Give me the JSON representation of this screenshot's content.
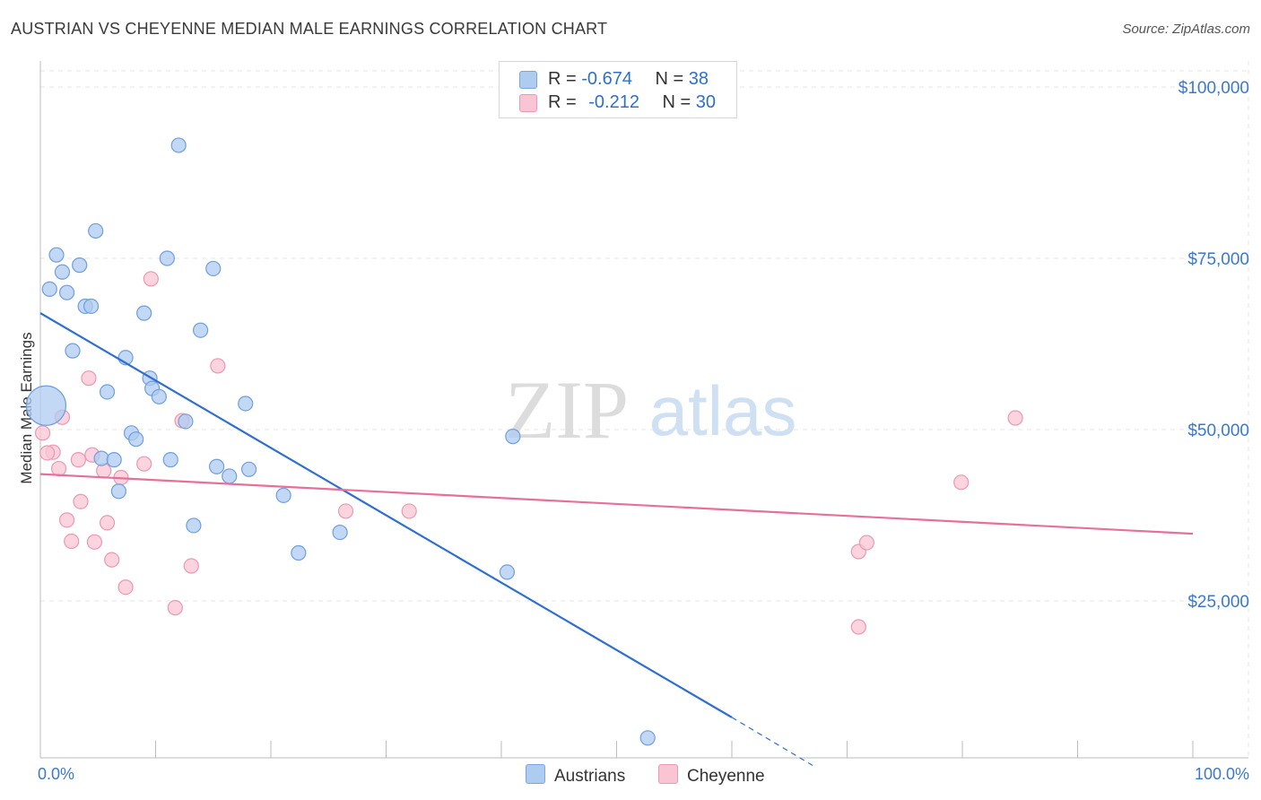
{
  "title": "AUSTRIAN VS CHEYENNE MEDIAN MALE EARNINGS CORRELATION CHART",
  "source": "Source: ZipAtlas.com",
  "watermark": {
    "zip": "ZIP",
    "atlas": "atlas"
  },
  "legend_top": [
    {
      "r_label": "R = ",
      "r_value": "-0.674",
      "n_label": "N = ",
      "n_value": "38",
      "color": "#aecbf0",
      "border": "#7aa6df"
    },
    {
      "r_label": "R = ",
      "r_value": "-0.212",
      "n_label": "N = ",
      "n_value": "30",
      "color": "#f9c5d4",
      "border": "#eb98b2"
    }
  ],
  "legend_bottom": [
    {
      "label": "Austrians",
      "color": "#aecbf0",
      "border": "#7aa6df"
    },
    {
      "label": "Cheyenne",
      "color": "#f9c5d4",
      "border": "#eb98b2"
    }
  ],
  "chart_data": {
    "type": "scatter",
    "title": "AUSTRIAN VS CHEYENNE MEDIAN MALE EARNINGS CORRELATION CHART",
    "xlabel": "",
    "ylabel": "Median Male Earnings",
    "xlim": [
      0,
      100
    ],
    "ylim": [
      0,
      102000
    ],
    "x_tick_labels": [
      "0.0%",
      "100.0%"
    ],
    "y_ticks": [
      25000,
      50000,
      75000,
      100000
    ],
    "y_tick_labels": [
      "$25,000",
      "$50,000",
      "$75,000",
      "$100,000"
    ],
    "grid": true,
    "series": [
      {
        "name": "Austrians",
        "color": "#aecbf0",
        "stroke": "#6f9fdc",
        "line_color": "#2f6fd1",
        "trend": {
          "x0": 0,
          "y0": 67000,
          "x1": 60,
          "y1": 8000,
          "dash_x1": 67,
          "dash_y1": 1000
        },
        "points": [
          {
            "x": 0.5,
            "y": 53500,
            "big": true
          },
          {
            "x": 12.0,
            "y": 91500
          },
          {
            "x": 4.8,
            "y": 79000
          },
          {
            "x": 1.4,
            "y": 75500
          },
          {
            "x": 3.4,
            "y": 74000
          },
          {
            "x": 11.0,
            "y": 75000
          },
          {
            "x": 15.0,
            "y": 73500
          },
          {
            "x": 1.9,
            "y": 73000
          },
          {
            "x": 0.8,
            "y": 70500
          },
          {
            "x": 2.3,
            "y": 70000
          },
          {
            "x": 3.9,
            "y": 68000
          },
          {
            "x": 4.4,
            "y": 68000
          },
          {
            "x": 9.0,
            "y": 67000
          },
          {
            "x": 13.9,
            "y": 64500
          },
          {
            "x": 2.8,
            "y": 61500
          },
          {
            "x": 7.4,
            "y": 60500
          },
          {
            "x": 9.5,
            "y": 57500
          },
          {
            "x": 9.7,
            "y": 56000
          },
          {
            "x": 10.3,
            "y": 54800
          },
          {
            "x": 5.8,
            "y": 55500
          },
          {
            "x": 17.8,
            "y": 53800
          },
          {
            "x": 12.6,
            "y": 51200
          },
          {
            "x": 7.9,
            "y": 49500
          },
          {
            "x": 8.3,
            "y": 48600
          },
          {
            "x": 41.0,
            "y": 49000
          },
          {
            "x": 5.3,
            "y": 45800
          },
          {
            "x": 6.4,
            "y": 45600
          },
          {
            "x": 11.3,
            "y": 45600
          },
          {
            "x": 15.3,
            "y": 44600
          },
          {
            "x": 18.1,
            "y": 44200
          },
          {
            "x": 16.4,
            "y": 43200
          },
          {
            "x": 6.8,
            "y": 41000
          },
          {
            "x": 21.1,
            "y": 40400
          },
          {
            "x": 13.3,
            "y": 36000
          },
          {
            "x": 26.0,
            "y": 35000
          },
          {
            "x": 22.4,
            "y": 32000
          },
          {
            "x": 40.5,
            "y": 29200
          },
          {
            "x": 52.7,
            "y": 5000
          }
        ]
      },
      {
        "name": "Cheyenne",
        "color": "#f9c5d4",
        "stroke": "#eb98b2",
        "line_color": "#e6709a",
        "trend": {
          "x0": 0,
          "y0": 43500,
          "x1": 100,
          "y1": 34800
        },
        "points": [
          {
            "x": 9.6,
            "y": 72000
          },
          {
            "x": 15.4,
            "y": 59300
          },
          {
            "x": 4.2,
            "y": 57500
          },
          {
            "x": 1.9,
            "y": 51800
          },
          {
            "x": 12.3,
            "y": 51300
          },
          {
            "x": 0.2,
            "y": 49500
          },
          {
            "x": 1.1,
            "y": 46700
          },
          {
            "x": 0.6,
            "y": 46600
          },
          {
            "x": 4.5,
            "y": 46300
          },
          {
            "x": 3.3,
            "y": 45600
          },
          {
            "x": 9.0,
            "y": 45000
          },
          {
            "x": 1.6,
            "y": 44300
          },
          {
            "x": 5.5,
            "y": 44000
          },
          {
            "x": 7.0,
            "y": 43000
          },
          {
            "x": 3.5,
            "y": 39500
          },
          {
            "x": 2.3,
            "y": 36800
          },
          {
            "x": 5.8,
            "y": 36400
          },
          {
            "x": 26.5,
            "y": 38100
          },
          {
            "x": 32.0,
            "y": 38100
          },
          {
            "x": 2.7,
            "y": 33700
          },
          {
            "x": 4.7,
            "y": 33600
          },
          {
            "x": 6.2,
            "y": 31000
          },
          {
            "x": 13.1,
            "y": 30100
          },
          {
            "x": 7.4,
            "y": 27000
          },
          {
            "x": 11.7,
            "y": 24000
          },
          {
            "x": 84.6,
            "y": 51700
          },
          {
            "x": 79.9,
            "y": 42300
          },
          {
            "x": 71.0,
            "y": 32200
          },
          {
            "x": 71.7,
            "y": 33500
          },
          {
            "x": 71.0,
            "y": 21200
          }
        ]
      }
    ]
  }
}
